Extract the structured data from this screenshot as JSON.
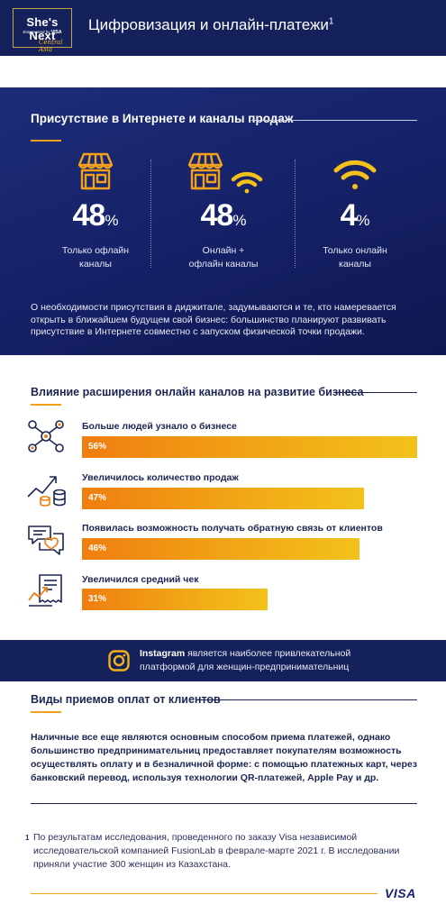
{
  "header": {
    "logo_main": "She's Next",
    "logo_empowered": "Empowered by",
    "logo_brand": "VISA",
    "logo_script": "Central Asia",
    "title": "Цифровизация и онлайн-платежи",
    "title_sup": "1"
  },
  "presence": {
    "title": "Присутствие в Интернете и каналы продаж",
    "stats": [
      {
        "value": "48",
        "unit": "%",
        "label": "Только офлайн\nканалы",
        "icon": "shop-icon"
      },
      {
        "value": "48",
        "unit": "%",
        "label": "Онлайн +\nофлайн каналы",
        "icon": "shop-wifi-icon"
      },
      {
        "value": "4",
        "unit": "%",
        "label": "Только онлайн\nканалы",
        "icon": "wifi-icon"
      }
    ],
    "body": "О необходимости присутствия в диджитале, задумываются и те, кто намеревается открыть в ближайшем будущем свой бизнес: большинство планируют развивать присутствие в Интернете совместно с запуском физической точки продажи."
  },
  "impact": {
    "title": "Влияние расширения онлайн каналов на развитие бизнеса",
    "items": [
      {
        "label": "Больше людей узнало о бизнесе",
        "value": "56%",
        "fraction": 0.56,
        "icon": "people-network-icon"
      },
      {
        "label": "Увеличилось количество продаж",
        "value": "47%",
        "fraction": 0.47,
        "icon": "growth-coins-icon"
      },
      {
        "label": "Появилась возможность получать обратную связь от клиентов",
        "value": "46%",
        "fraction": 0.46,
        "icon": "feedback-heart-icon"
      },
      {
        "label": "Увеличился средний чек",
        "value": "31%",
        "fraction": 0.31,
        "icon": "receipt-chart-icon"
      }
    ]
  },
  "banner": {
    "bold": "Instagram",
    "line1": " является наиболее привлекательной",
    "line2": "платформой для женщин-предпринимательниц"
  },
  "payments": {
    "title": "Виды приемов оплат от клиентов",
    "body": "Наличные все еще являются основным способом приема платежей, однако большинство предпринимательниц предоставляет покупателям возможность осуществлять оплату и в безналичной форме: с помощью платежных карт, через банковский перевод, используя технологии QR-платежей, Apple Pay и др."
  },
  "footnote": {
    "mark": "1",
    "text": "По результатам исследования, проведенного по заказу Visa независимой исследовательской компанией FusionLab в феврале-марте 2021 г. В исследовании приняли участие 300 женщин из Казахстана."
  },
  "footer": {
    "brand": "VISA"
  },
  "colors": {
    "navy": "#15215a",
    "orange": "#f07d10",
    "gold": "#f2c21a",
    "text": "#1c2552"
  }
}
